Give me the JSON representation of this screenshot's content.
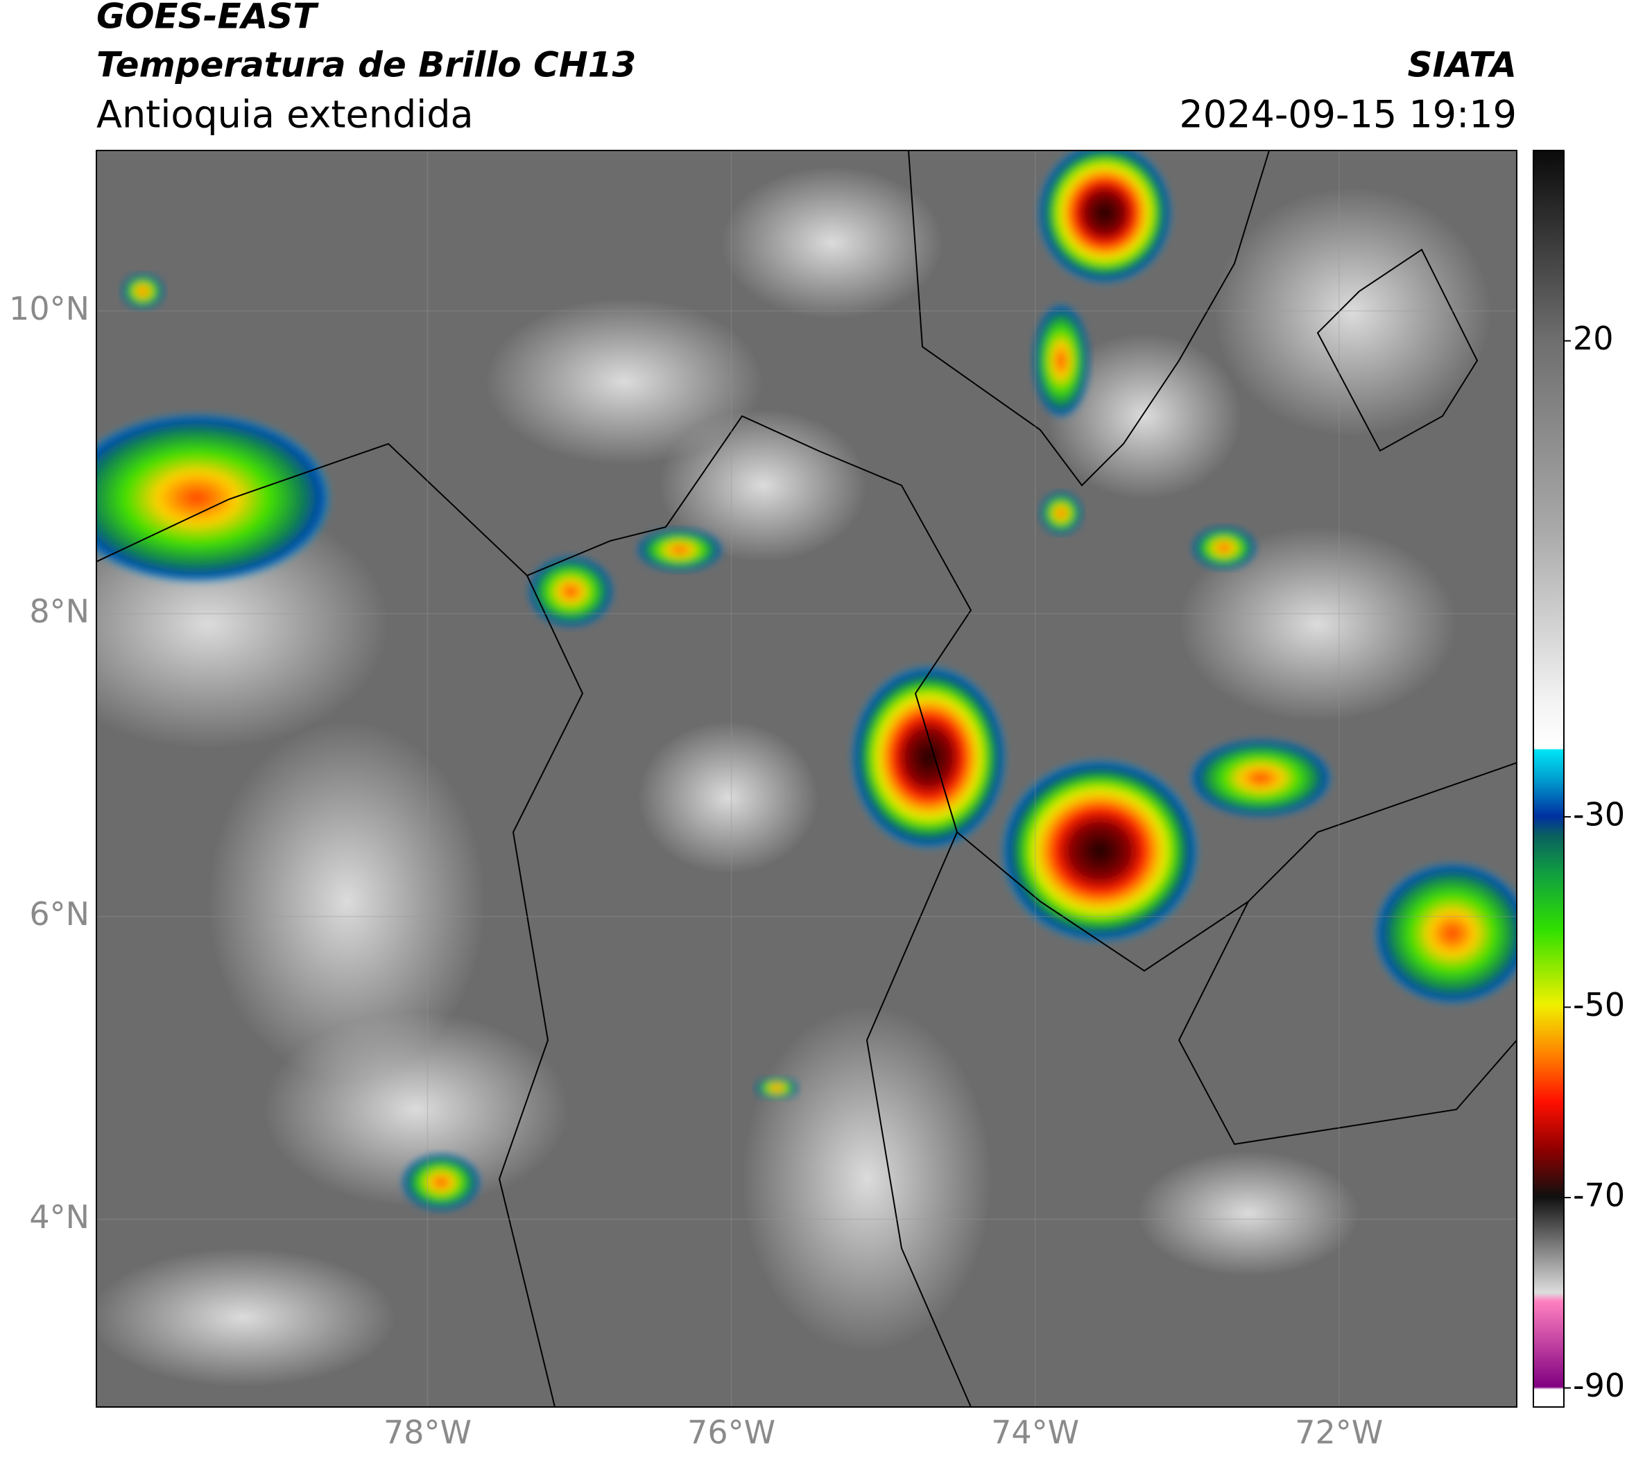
{
  "header": {
    "title_line1": "GOES-EAST",
    "title_line2": "Temperatura de Brillo CH13",
    "subtitle": "Antioquia extendida",
    "source": "SIATA",
    "datetime": "2024-09-15 19:19"
  },
  "map": {
    "lat_range": [
      2.76,
      11.06
    ],
    "lon_range": [
      -80.18,
      -70.83
    ],
    "lat_ticks": [
      {
        "value": 10,
        "label": "10°N"
      },
      {
        "value": 8,
        "label": "8°N"
      },
      {
        "value": 6,
        "label": "6°N"
      },
      {
        "value": 4,
        "label": "4°N"
      }
    ],
    "lon_ticks": [
      {
        "value": -78,
        "label": "78°W"
      },
      {
        "value": -76,
        "label": "76°W"
      },
      {
        "value": -74,
        "label": "74°W"
      },
      {
        "value": -72,
        "label": "72°W"
      }
    ]
  },
  "colorbar": {
    "range": [
      -92,
      40
    ],
    "ticks": [
      20,
      -30,
      -50,
      -70,
      -90
    ]
  }
}
